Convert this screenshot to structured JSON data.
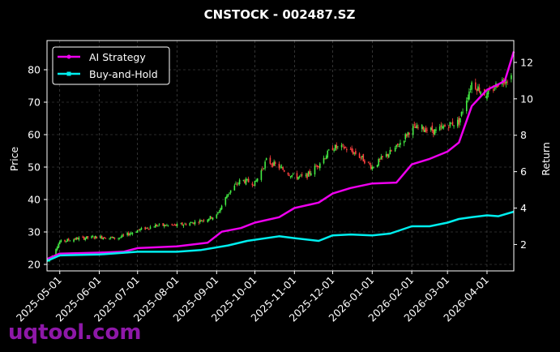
{
  "chart_data": {
    "type": "line",
    "title": "CNSTOCK - 002487.SZ",
    "xlabel": "",
    "ylabel": "Price",
    "y2label": "Return",
    "grid": true,
    "legend_position": "top-left",
    "xlim": [
      "2025-04-21",
      "2026-04-22"
    ],
    "ylim": [
      18,
      89
    ],
    "y2lim": [
      0.55,
      13.2
    ],
    "x_ticks": [
      "2025-05-01",
      "2025-06-01",
      "2025-07-01",
      "2025-08-01",
      "2025-09-01",
      "2025-10-01",
      "2025-11-01",
      "2025-12-01",
      "2026-01-01",
      "2026-02-01",
      "2026-03-01",
      "2026-04-01"
    ],
    "y_ticks": [
      20,
      30,
      40,
      50,
      60,
      70,
      80
    ],
    "y2_ticks": [
      2,
      4,
      6,
      8,
      10,
      12
    ],
    "colors": {
      "up": "#44ee44",
      "down": "#ff4040",
      "ai_strategy": "#ee00ee",
      "buy_and_hold": "#00eeee",
      "grid": "#555555",
      "background": "#000000"
    },
    "price_series": {
      "name": "Price",
      "dates": [
        "2025-04-22",
        "2025-05-01",
        "2025-05-15",
        "2025-06-01",
        "2025-06-15",
        "2025-07-01",
        "2025-07-15",
        "2025-08-01",
        "2025-08-15",
        "2025-09-01",
        "2025-09-10",
        "2025-09-20",
        "2025-10-01",
        "2025-10-10",
        "2025-10-20",
        "2025-11-01",
        "2025-11-10",
        "2025-11-20",
        "2025-12-01",
        "2025-12-10",
        "2025-12-20",
        "2026-01-01",
        "2026-01-10",
        "2026-01-20",
        "2026-02-01",
        "2026-02-10",
        "2026-02-20",
        "2026-03-01",
        "2026-03-10",
        "2026-03-20",
        "2026-04-01",
        "2026-04-10",
        "2026-04-20"
      ],
      "values": [
        21,
        27,
        28,
        28.5,
        28,
        30.5,
        32,
        32,
        33,
        35,
        42,
        46,
        45,
        52,
        50,
        47,
        47,
        51,
        56,
        56,
        54,
        50,
        53,
        56,
        62,
        62,
        61,
        63,
        64,
        76,
        72,
        76,
        78
      ]
    },
    "series": [
      {
        "name": "AI Strategy",
        "axis": "right",
        "dates": [
          "2025-04-21",
          "2025-05-01",
          "2025-06-01",
          "2025-06-20",
          "2025-07-01",
          "2025-08-01",
          "2025-08-25",
          "2025-09-05",
          "2025-09-20",
          "2025-10-01",
          "2025-10-20",
          "2025-11-01",
          "2025-11-20",
          "2025-12-01",
          "2025-12-15",
          "2026-01-01",
          "2026-01-20",
          "2026-02-01",
          "2026-02-15",
          "2026-03-01",
          "2026-03-10",
          "2026-03-20",
          "2026-04-01",
          "2026-04-10",
          "2026-04-15",
          "2026-04-22"
        ],
        "values": [
          1.2,
          1.5,
          1.55,
          1.6,
          1.8,
          1.9,
          2.1,
          2.7,
          2.9,
          3.2,
          3.5,
          4.0,
          4.3,
          4.8,
          5.1,
          5.35,
          5.4,
          6.4,
          6.7,
          7.1,
          7.6,
          9.6,
          10.5,
          10.8,
          11.0,
          12.6
        ]
      },
      {
        "name": "Buy-and-Hold",
        "axis": "right",
        "dates": [
          "2025-04-21",
          "2025-05-01",
          "2025-06-01",
          "2025-07-01",
          "2025-08-01",
          "2025-08-20",
          "2025-09-10",
          "2025-09-25",
          "2025-10-20",
          "2025-11-01",
          "2025-11-20",
          "2025-12-01",
          "2025-12-15",
          "2026-01-01",
          "2026-01-15",
          "2026-02-01",
          "2026-02-15",
          "2026-03-01",
          "2026-03-10",
          "2026-03-20",
          "2026-04-01",
          "2026-04-10",
          "2026-04-22"
        ],
        "values": [
          1.1,
          1.4,
          1.45,
          1.6,
          1.6,
          1.7,
          1.95,
          2.2,
          2.45,
          2.35,
          2.2,
          2.5,
          2.55,
          2.5,
          2.6,
          3.0,
          3.0,
          3.2,
          3.4,
          3.5,
          3.6,
          3.55,
          3.8
        ]
      }
    ]
  },
  "watermark": "uqtool.com"
}
